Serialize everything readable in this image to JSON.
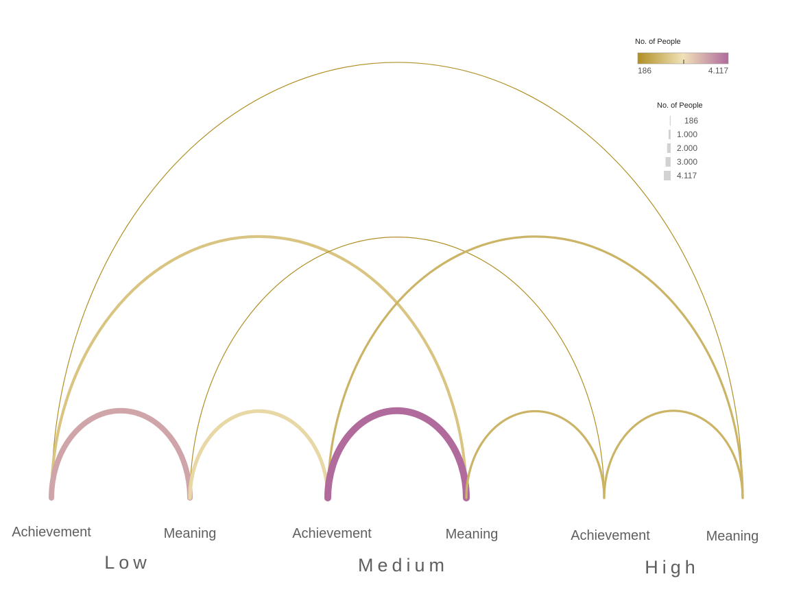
{
  "chart_data": {
    "type": "arc",
    "nodes": [
      {
        "label": "Achievement",
        "group": "Low"
      },
      {
        "label": "Meaning",
        "group": "Low"
      },
      {
        "label": "Achievement",
        "group": "Medium"
      },
      {
        "label": "Meaning",
        "group": "Medium"
      },
      {
        "label": "Achievement",
        "group": "High"
      },
      {
        "label": "Meaning",
        "group": "High"
      }
    ],
    "groups": [
      "Low",
      "Medium",
      "High"
    ],
    "links": [
      {
        "source": 0,
        "target": 1,
        "value": 3200
      },
      {
        "source": 1,
        "target": 2,
        "value": 2000
      },
      {
        "source": 2,
        "target": 3,
        "value": 4117
      },
      {
        "source": 3,
        "target": 4,
        "value": 1100
      },
      {
        "source": 4,
        "target": 5,
        "value": 1100
      },
      {
        "source": 0,
        "target": 3,
        "value": 1500
      },
      {
        "source": 1,
        "target": 4,
        "value": 186
      },
      {
        "source": 2,
        "target": 5,
        "value": 1100
      },
      {
        "source": 0,
        "target": 5,
        "value": 186
      }
    ],
    "color_legend": {
      "title": "No. of People",
      "min_label": "186",
      "max_label": "4.117",
      "min": 186,
      "max": 4117,
      "colors": [
        "#b08f24",
        "#f0e2b8",
        "#b06b9c"
      ]
    },
    "size_legend": {
      "title": "No. of People",
      "entries": [
        {
          "label": "186",
          "value": 186
        },
        {
          "label": "1.000",
          "value": 1000
        },
        {
          "label": "2.000",
          "value": 2000
        },
        {
          "label": "3.000",
          "value": 3000
        },
        {
          "label": "4.117",
          "value": 4117
        }
      ]
    }
  }
}
